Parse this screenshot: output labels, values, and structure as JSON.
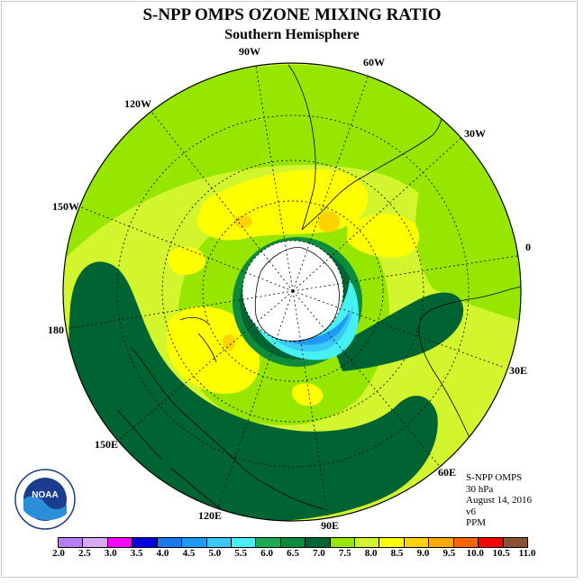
{
  "title": "S-NPP OMPS OZONE MIXING RATIO",
  "subtitle": "Southern Hemisphere",
  "longitude_labels": [
    "90W",
    "60W",
    "30W",
    "0",
    "30E",
    "60E",
    "90E",
    "120E",
    "150E",
    "180",
    "150W",
    "120W"
  ],
  "info": {
    "instrument": "S-NPP OMPS",
    "level": "30 hPa",
    "date": "August 14, 2016",
    "version": "v6",
    "units": "PPM"
  },
  "logo_text": "NOAA",
  "colorbar": {
    "ticks": [
      "2.0",
      "2.5",
      "3.0",
      "3.5",
      "4.0",
      "4.5",
      "5.0",
      "5.5",
      "6.0",
      "6.5",
      "7.0",
      "7.5",
      "8.0",
      "8.5",
      "9.0",
      "9.5",
      "10.0",
      "10.5",
      "11.0"
    ],
    "colors": [
      "#b67cf4",
      "#d8a8f0",
      "#ff00ff",
      "#0000e0",
      "#1a78f0",
      "#1e9cf5",
      "#3cc8f5",
      "#46f0f5",
      "#1eaa50",
      "#0f8b3c",
      "#006432",
      "#96e600",
      "#d2f52d",
      "#ffff00",
      "#ffd200",
      "#ffaa00",
      "#ff6400",
      "#ff0000",
      "#8c5032"
    ]
  },
  "colors": {
    "background_field": "#d2f52d",
    "light_band": "#96e600",
    "dark_band": "#006432",
    "mid_green": "#0f8b3c",
    "yellow": "#ffff00",
    "orange": "#ffd200",
    "blue": "#3cc8f5",
    "cyan": "#46f0f5",
    "deep_blue": "#1e9cf5"
  }
}
